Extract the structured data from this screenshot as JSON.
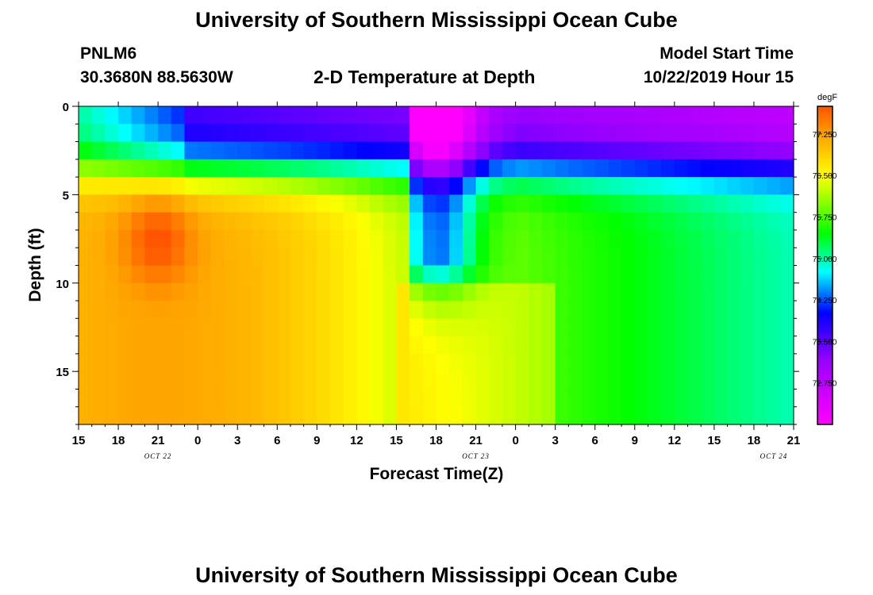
{
  "header": {
    "title_top": "University of Southern Mississippi Ocean Cube",
    "station": "PNLM6",
    "coords": "30.3680N 88.5630W",
    "plot_title": "2-D Temperature at Depth",
    "model_label": "Model Start Time",
    "model_time": "10/22/2019 Hour 15",
    "title_bottom": "University of Southern Mississippi Ocean Cube"
  },
  "chart_data": {
    "type": "heatmap",
    "title": "2-D Temperature at Depth",
    "xlabel": "Forecast Time(Z)",
    "ylabel": "Depth (ft)",
    "x_ticks": [
      "15",
      "18",
      "21",
      "0",
      "3",
      "6",
      "9",
      "12",
      "15",
      "18",
      "21",
      "0",
      "3",
      "6",
      "9",
      "12",
      "15",
      "18",
      "21"
    ],
    "x_range_hours": [
      0,
      54
    ],
    "date_labels": [
      {
        "text": "OCT 22",
        "hour": 6
      },
      {
        "text": "OCT 23",
        "hour": 30
      },
      {
        "text": "OCT 24",
        "hour": 52.5
      }
    ],
    "y_ticks": [
      0,
      5,
      10,
      15
    ],
    "ylim_ft": [
      0,
      18
    ],
    "y_inverted": true,
    "colorbar": {
      "unit": "degF",
      "range": [
        72.0,
        77.75
      ],
      "ticks": [
        "77.250",
        "76.500",
        "75.750",
        "75.000",
        "74.250",
        "73.500",
        "72.750"
      ]
    },
    "features": {
      "surface_layer": "cool 73-75 degF near surface, coolest after hour 24",
      "warm_core": "77-77.75 degF around hour 6, depth 6-10 ft",
      "cold_intrusion": "dip to 74 degF down to ~10 ft near hours 25-33",
      "late_period": "cooling to ~75 degF at depth toward hour 54"
    }
  }
}
